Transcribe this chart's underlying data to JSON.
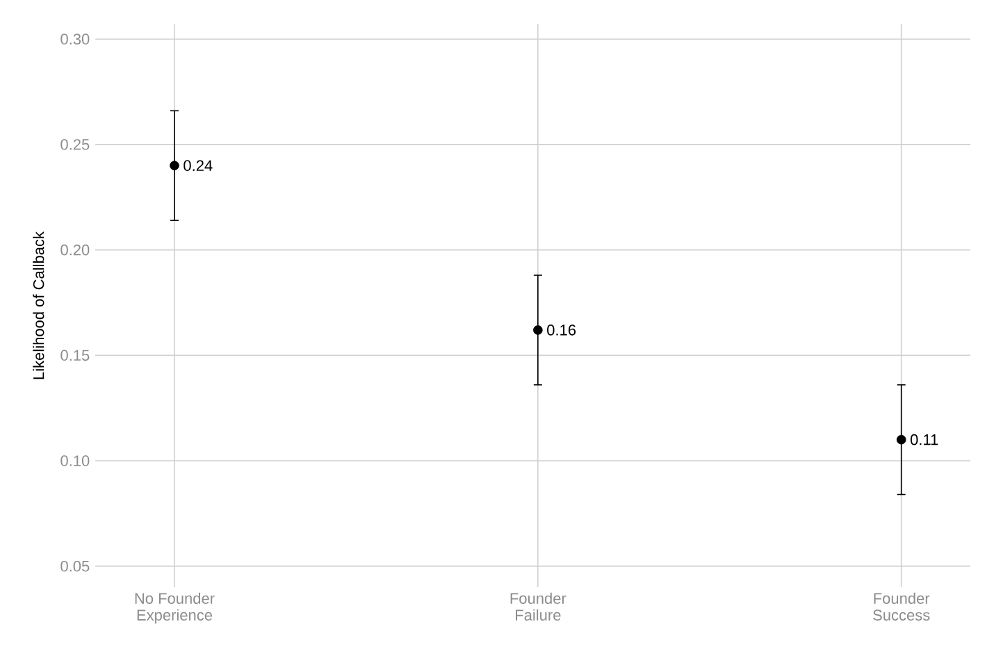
{
  "chart_data": {
    "type": "scatter",
    "ylabel": "Likelihood of Callback",
    "categories": [
      "No Founder\nExperience",
      "Founder\nFailure",
      "Founder\nSuccess"
    ],
    "values": [
      0.24,
      0.162,
      0.11
    ],
    "errors": [
      0.026,
      0.026,
      0.026
    ],
    "value_labels": [
      "0.24",
      "0.16",
      "0.11"
    ],
    "color": "#000000",
    "marker": "circle",
    "grid": true,
    "ylim": [
      0.04,
      0.307
    ],
    "yticks": [
      {
        "value": 0.05,
        "label": "0.05"
      },
      {
        "value": 0.1,
        "label": "0.10"
      },
      {
        "value": 0.15,
        "label": "0.15"
      },
      {
        "value": 0.2,
        "label": "0.20"
      },
      {
        "value": 0.25,
        "label": "0.25"
      },
      {
        "value": 0.3,
        "label": "0.30"
      }
    ]
  }
}
